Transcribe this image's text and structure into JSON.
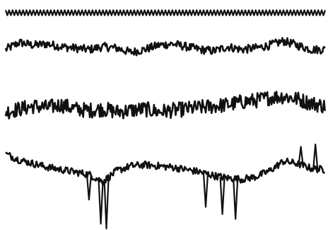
{
  "figure": {
    "ink_color": "#111111",
    "background": "#ffffff"
  },
  "chart_data": {
    "type": "line",
    "title": "",
    "xlabel": "",
    "ylabel": "",
    "axes": "none",
    "grid": false,
    "legend": "none",
    "x": [
      0,
      20,
      40,
      60,
      80,
      100,
      120,
      140,
      160,
      180,
      200,
      220,
      240,
      260,
      280,
      300,
      320,
      340,
      360,
      380,
      400,
      420,
      440,
      460
    ],
    "series": [
      {
        "values": [
          0.0,
          0.0,
          0.0,
          0.0,
          0.0,
          0.0,
          0.0,
          0.0,
          0.0,
          0.0,
          0.0,
          0.0,
          0.0,
          0.0,
          0.0,
          0.0,
          0.0,
          0.0,
          0.0,
          0.0,
          0.0,
          0.0,
          0.0,
          0.0
        ],
        "noise": 0.6
      },
      {
        "values": [
          -0.1,
          0.15,
          0.05,
          0.1,
          0.0,
          -0.05,
          -0.1,
          0.0,
          -0.05,
          -0.2,
          -0.1,
          0.05,
          0.1,
          0.0,
          -0.1,
          -0.15,
          0.0,
          -0.1,
          -0.05,
          0.05,
          0.2,
          0.05,
          -0.1,
          -0.1
        ],
        "noise": 0.25
      },
      {
        "values": [
          -0.2,
          -0.1,
          0.0,
          -0.05,
          0.05,
          -0.1,
          -0.15,
          -0.1,
          -0.2,
          -0.15,
          -0.1,
          -0.2,
          -0.15,
          -0.1,
          -0.05,
          0.0,
          0.05,
          0.15,
          0.2,
          0.3,
          0.35,
          0.25,
          0.1,
          0.0
        ],
        "noise": 0.45
      },
      {
        "values": [
          0.6,
          0.35,
          0.2,
          0.05,
          -0.05,
          -0.15,
          -0.25,
          -0.55,
          -0.1,
          0.1,
          0.15,
          0.1,
          0.05,
          -0.05,
          -0.15,
          -0.3,
          -0.4,
          -0.45,
          -0.35,
          -0.1,
          0.3,
          0.2,
          0.0,
          -0.05
        ],
        "noise": 0.25,
        "spikes": [
          {
            "x": 120,
            "value": -1.3
          },
          {
            "x": 137,
            "value": -2.3
          },
          {
            "x": 145,
            "value": -2.5
          },
          {
            "x": 288,
            "value": -1.6
          },
          {
            "x": 312,
            "value": -1.9
          },
          {
            "x": 331,
            "value": -2.1
          },
          {
            "x": 425,
            "value": 0.9
          },
          {
            "x": 446,
            "value": 1.0
          }
        ]
      }
    ]
  }
}
